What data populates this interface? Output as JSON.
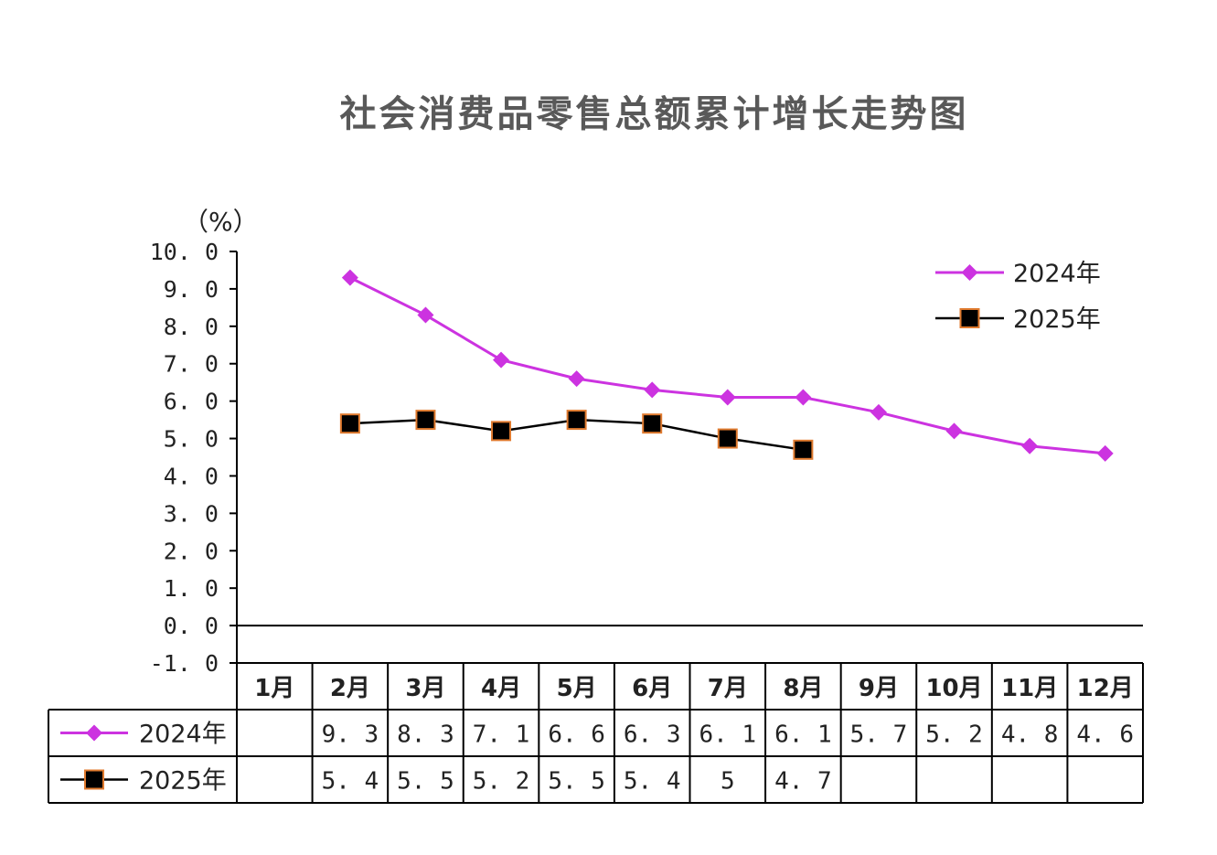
{
  "chart_data": {
    "type": "line",
    "title": "社会消费品零售总额累计增长走势图",
    "unit_label": "（%）",
    "ylim": [
      -1.0,
      10.0
    ],
    "y_ticks": [
      "10. 0",
      "9. 0",
      "8. 0",
      "7. 0",
      "6. 0",
      "5. 0",
      "4. 0",
      "3. 0",
      "2. 0",
      "1. 0",
      "0. 0",
      "-1. 0"
    ],
    "categories": [
      "1月",
      "2月",
      "3月",
      "4月",
      "5月",
      "6月",
      "7月",
      "8月",
      "9月",
      "10月",
      "11月",
      "12月"
    ],
    "series": [
      {
        "name": "2024年",
        "color": "#CC33E0",
        "marker": "diamond",
        "values": [
          null,
          9.3,
          8.3,
          7.1,
          6.6,
          6.3,
          6.1,
          6.1,
          5.7,
          5.2,
          4.8,
          4.6
        ],
        "table_labels": [
          "",
          "9. 3",
          "8. 3",
          "7. 1",
          "6. 6",
          "6. 3",
          "6. 1",
          "6. 1",
          "5. 7",
          "5. 2",
          "4. 8",
          "4. 6"
        ]
      },
      {
        "name": "2025年",
        "color": "#000000",
        "marker_fill": "#000000",
        "marker_edge": "#E07A2E",
        "marker": "square",
        "values": [
          null,
          5.4,
          5.5,
          5.2,
          5.5,
          5.4,
          5.0,
          4.7,
          null,
          null,
          null,
          null
        ],
        "table_labels": [
          "",
          "5. 4",
          "5. 5",
          "5. 2",
          "5. 5",
          "5. 4",
          "5",
          "4. 7",
          "",
          "",
          "",
          ""
        ]
      }
    ],
    "legend_position": "top-right",
    "grid": false
  }
}
